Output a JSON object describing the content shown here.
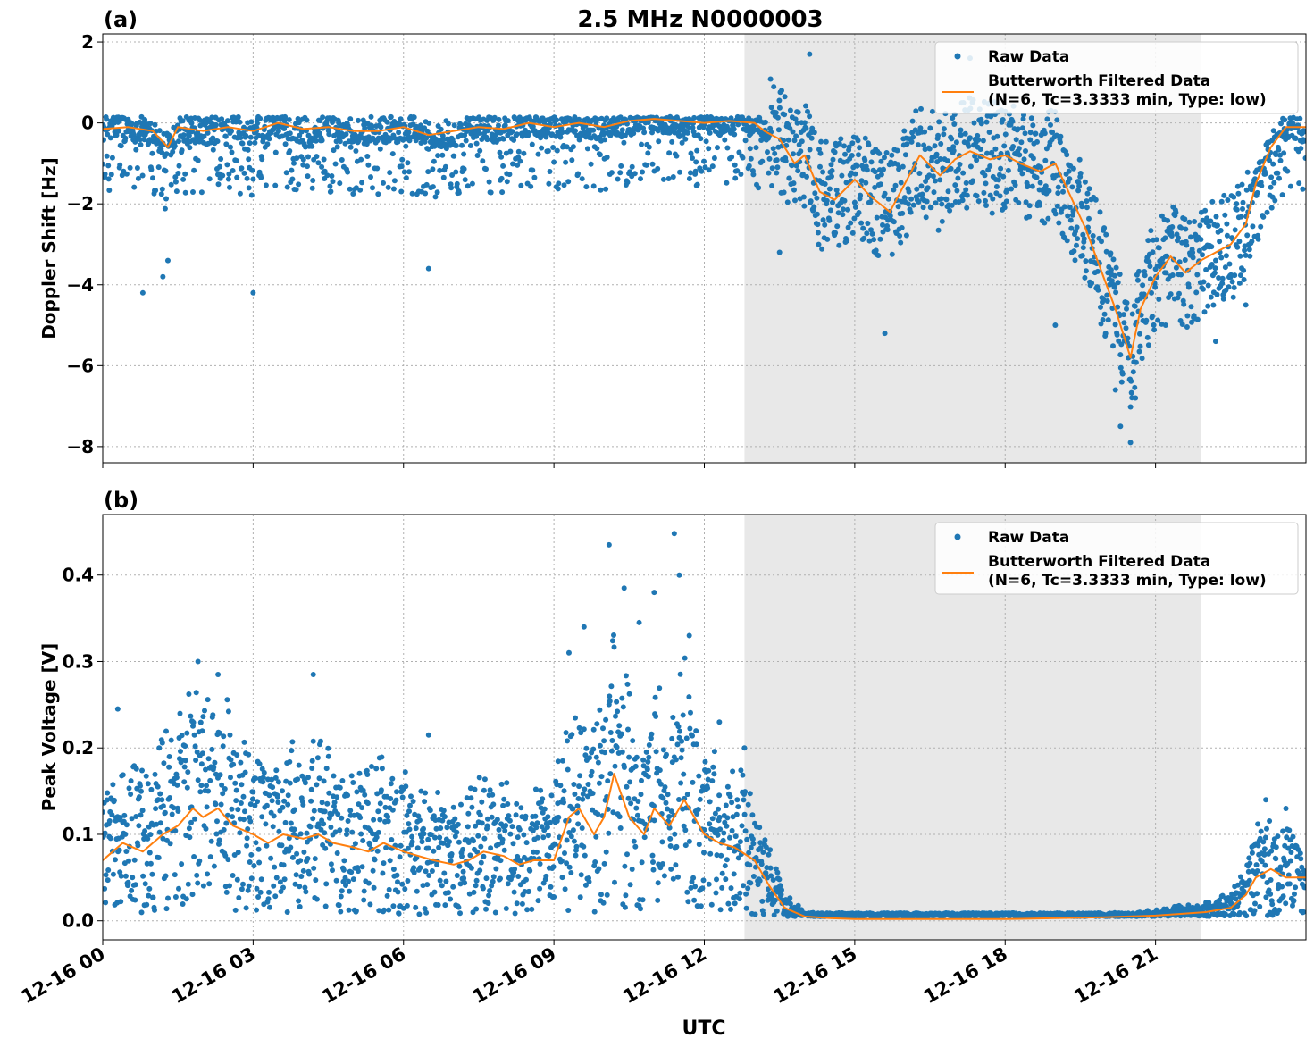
{
  "figure": {
    "title": "2.5 MHz N0000003",
    "xlabel": "UTC",
    "colors": {
      "raw": "#1f77b4",
      "filtered": "#ff7f0e",
      "shade": "#e8e8e8",
      "grid": "#b0b0b0"
    }
  },
  "chart_data": [
    {
      "type": "scatter",
      "panel_label": "(a)",
      "ylabel": "Doppler Shift [Hz]",
      "xlim": [
        0,
        24
      ],
      "ylim": [
        -8.4,
        2.2
      ],
      "x_ticks": [
        0,
        3,
        6,
        9,
        12,
        15,
        18,
        21
      ],
      "x_tick_labels": [
        "12-16 00",
        "12-16 03",
        "12-16 06",
        "12-16 09",
        "12-16 12",
        "12-16 15",
        "12-16 18",
        "12-16 21"
      ],
      "y_ticks": [
        2,
        0,
        -2,
        -4,
        -6,
        -8
      ],
      "y_tick_labels": [
        "2",
        "0",
        "−2",
        "−4",
        "−6",
        "−8"
      ],
      "show_x_tick_labels": false,
      "shaded_region": [
        12.8,
        21.9
      ],
      "grid": true,
      "legend": {
        "position": "top-right",
        "entries": [
          "Raw Data",
          "Butterworth Filtered Data",
          "(N=6, Tc=3.3333 min, Type: low)"
        ]
      },
      "series": [
        {
          "name": "Butterworth Filtered Data",
          "kind": "line",
          "x": [
            0,
            0.5,
            1,
            1.3,
            1.5,
            2,
            2.5,
            3,
            3.5,
            4,
            4.5,
            5,
            5.5,
            6,
            6.5,
            7,
            7.5,
            8,
            8.5,
            9,
            9.5,
            10,
            10.5,
            11,
            11.5,
            12,
            12.5,
            13,
            13.2,
            13.5,
            13.8,
            14,
            14.3,
            14.6,
            15,
            15.3,
            15.7,
            16,
            16.3,
            16.7,
            17,
            17.3,
            17.7,
            18,
            18.3,
            18.7,
            19,
            19.3,
            19.6,
            19.9,
            20.2,
            20.5,
            20.7,
            21,
            21.3,
            21.6,
            21.9,
            22.2,
            22.5,
            22.8,
            23,
            23.3,
            23.6,
            24
          ],
          "y": [
            -0.15,
            -0.1,
            -0.2,
            -0.6,
            -0.1,
            -0.2,
            -0.1,
            -0.2,
            0.0,
            -0.15,
            -0.1,
            -0.2,
            -0.2,
            -0.1,
            -0.3,
            -0.2,
            -0.1,
            -0.15,
            0.0,
            -0.1,
            0.0,
            -0.1,
            0.05,
            0.1,
            0.05,
            0.0,
            0.05,
            0.0,
            -0.2,
            -0.4,
            -1.0,
            -0.8,
            -1.7,
            -1.9,
            -1.4,
            -1.8,
            -2.2,
            -1.5,
            -0.8,
            -1.3,
            -0.9,
            -0.7,
            -0.9,
            -0.8,
            -1.0,
            -1.2,
            -1.0,
            -1.8,
            -2.6,
            -3.6,
            -4.6,
            -5.8,
            -4.6,
            -3.8,
            -3.3,
            -3.7,
            -3.4,
            -3.2,
            -3.0,
            -2.5,
            -1.5,
            -0.6,
            -0.1,
            -0.1
          ]
        },
        {
          "name": "Raw Data",
          "kind": "scatter",
          "x": [
            0.8,
            1.2,
            1.3,
            3.0,
            6.5,
            12.9,
            13.5,
            14.1,
            15.6,
            17.3,
            19.0,
            20.2,
            20.3,
            20.5,
            20.6,
            21.2,
            22.2,
            22.8,
            23.0
          ],
          "y": [
            -4.2,
            -3.8,
            -3.4,
            -4.2,
            -3.6,
            -0.3,
            -3.2,
            1.7,
            -5.2,
            1.6,
            -5.0,
            -6.6,
            -7.5,
            -7.9,
            -6.8,
            -5.0,
            -5.4,
            -4.5,
            -1.5
          ]
        }
      ]
    },
    {
      "type": "scatter",
      "panel_label": "(b)",
      "ylabel": "Peak Voltage [V]",
      "xlim": [
        0,
        24
      ],
      "ylim": [
        -0.022,
        0.47
      ],
      "x_ticks": [
        0,
        3,
        6,
        9,
        12,
        15,
        18,
        21
      ],
      "x_tick_labels": [
        "12-16 00",
        "12-16 03",
        "12-16 06",
        "12-16 09",
        "12-16 12",
        "12-16 15",
        "12-16 18",
        "12-16 21"
      ],
      "y_ticks": [
        0.0,
        0.1,
        0.2,
        0.3,
        0.4
      ],
      "y_tick_labels": [
        "0.0",
        "0.1",
        "0.2",
        "0.3",
        "0.4"
      ],
      "show_x_tick_labels": true,
      "shaded_region": [
        12.8,
        21.9
      ],
      "grid": true,
      "legend": {
        "position": "top-right",
        "entries": [
          "Raw Data",
          "Butterworth Filtered Data",
          "(N=6, Tc=3.3333 min, Type: low)"
        ]
      },
      "series": [
        {
          "name": "Butterworth Filtered Data",
          "kind": "line",
          "x": [
            0,
            0.4,
            0.8,
            1.2,
            1.5,
            1.8,
            2.0,
            2.3,
            2.6,
            3.0,
            3.3,
            3.6,
            4.0,
            4.3,
            4.6,
            5.0,
            5.3,
            5.6,
            6.0,
            6.3,
            6.6,
            7.0,
            7.3,
            7.6,
            8.0,
            8.3,
            8.6,
            9.0,
            9.3,
            9.5,
            9.8,
            10.0,
            10.2,
            10.5,
            10.8,
            11.0,
            11.3,
            11.6,
            12.0,
            12.3,
            12.6,
            13.0,
            13.3,
            13.6,
            14.0,
            14.5,
            15.0,
            16.0,
            17.0,
            18.0,
            19.0,
            20.0,
            21.0,
            21.5,
            22.0,
            22.5,
            22.8,
            23.0,
            23.3,
            23.6,
            24
          ],
          "y": [
            0.07,
            0.09,
            0.08,
            0.1,
            0.11,
            0.13,
            0.12,
            0.13,
            0.11,
            0.1,
            0.09,
            0.1,
            0.095,
            0.1,
            0.09,
            0.085,
            0.08,
            0.09,
            0.08,
            0.075,
            0.07,
            0.065,
            0.07,
            0.08,
            0.075,
            0.065,
            0.07,
            0.07,
            0.12,
            0.13,
            0.1,
            0.12,
            0.17,
            0.12,
            0.1,
            0.13,
            0.11,
            0.14,
            0.1,
            0.09,
            0.085,
            0.07,
            0.04,
            0.015,
            0.005,
            0.003,
            0.002,
            0.002,
            0.002,
            0.002,
            0.003,
            0.004,
            0.006,
            0.008,
            0.01,
            0.015,
            0.03,
            0.05,
            0.06,
            0.05,
            0.05
          ]
        },
        {
          "name": "Raw Data",
          "kind": "scatter",
          "x": [
            0.3,
            1.9,
            2.3,
            4.2,
            6.5,
            9.3,
            9.6,
            10.1,
            10.4,
            10.7,
            11.0,
            11.4,
            11.5,
            11.7,
            12.3,
            12.8,
            23.2,
            23.6
          ],
          "y": [
            0.245,
            0.3,
            0.285,
            0.285,
            0.215,
            0.31,
            0.34,
            0.435,
            0.385,
            0.345,
            0.38,
            0.448,
            0.4,
            0.33,
            0.23,
            0.2,
            0.14,
            0.13
          ]
        }
      ]
    }
  ]
}
